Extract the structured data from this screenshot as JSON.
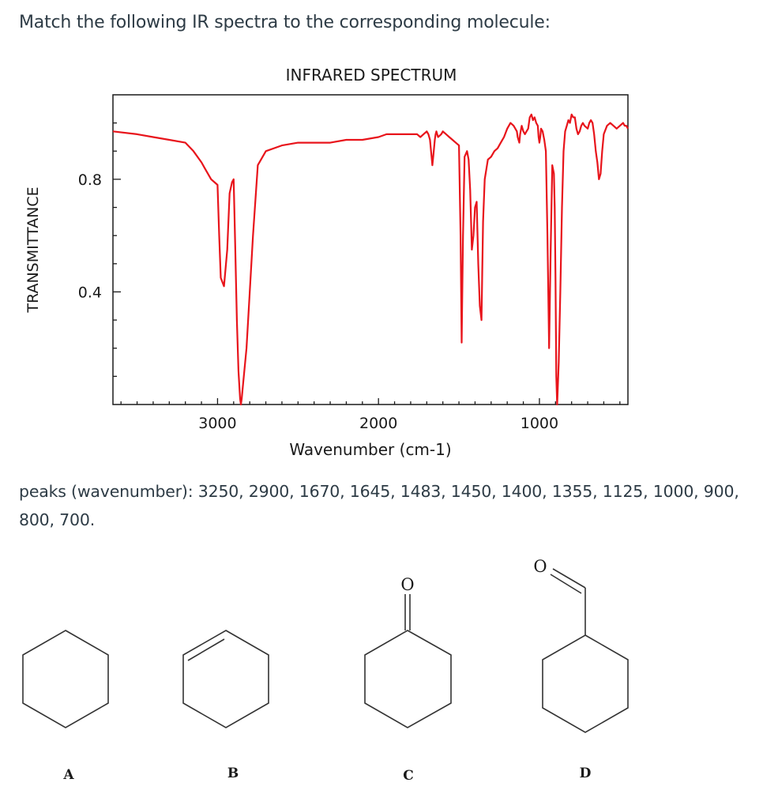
{
  "question": "Match the following IR spectra to the corresponding molecule:",
  "chart_data": {
    "type": "line",
    "title": "INFRARED SPECTRUM",
    "xlabel": "Wavenumber (cm-1)",
    "ylabel": "TRANSMITTANCE",
    "x_ticks": [
      {
        "value": 3000,
        "label": "3000"
      },
      {
        "value": 2000,
        "label": "2000"
      },
      {
        "value": 1000,
        "label": "1000"
      }
    ],
    "y_ticks": [
      {
        "value": 0.8,
        "label": "0.8"
      },
      {
        "value": 0.4,
        "label": "0.4"
      }
    ],
    "xlim": [
      3650,
      450
    ],
    "ylim": [
      0.0,
      1.1
    ],
    "line_color": "#e8141b",
    "series": [
      {
        "x": [
          3650,
          3500,
          3400,
          3300,
          3200,
          3150,
          3100,
          3080,
          3060,
          3040,
          3020,
          3000,
          2990,
          2980,
          2960,
          2940,
          2925,
          2910,
          2900,
          2890,
          2880,
          2870,
          2860,
          2855,
          2850,
          2840,
          2820,
          2800,
          2780,
          2750,
          2700,
          2600,
          2500,
          2400,
          2300,
          2200,
          2100,
          2000,
          1950,
          1920,
          1900,
          1880,
          1860,
          1840,
          1820,
          1800,
          1780,
          1760,
          1740,
          1720,
          1700,
          1690,
          1680,
          1670,
          1665,
          1660,
          1650,
          1645,
          1640,
          1630,
          1610,
          1600,
          1580,
          1560,
          1540,
          1520,
          1500,
          1490,
          1483,
          1475,
          1465,
          1450,
          1440,
          1430,
          1420,
          1410,
          1400,
          1390,
          1380,
          1370,
          1360,
          1355,
          1350,
          1340,
          1320,
          1300,
          1280,
          1260,
          1240,
          1220,
          1200,
          1180,
          1160,
          1140,
          1135,
          1130,
          1125,
          1120,
          1110,
          1100,
          1090,
          1080,
          1070,
          1060,
          1050,
          1040,
          1030,
          1020,
          1010,
          1005,
          1000,
          995,
          990,
          980,
          970,
          960,
          950,
          940,
          930,
          920,
          910,
          905,
          900,
          895,
          890,
          880,
          870,
          860,
          850,
          840,
          830,
          820,
          810,
          800,
          790,
          780,
          770,
          760,
          750,
          740,
          730,
          720,
          700,
          690,
          680,
          670,
          660,
          650,
          640,
          630,
          620,
          610,
          600,
          580,
          560,
          540,
          520,
          500,
          480,
          470,
          460,
          450
        ],
        "y": [
          0.97,
          0.96,
          0.95,
          0.94,
          0.93,
          0.9,
          0.86,
          0.84,
          0.82,
          0.8,
          0.79,
          0.78,
          0.6,
          0.45,
          0.42,
          0.55,
          0.75,
          0.79,
          0.8,
          0.55,
          0.3,
          0.12,
          0.02,
          0.0,
          0.02,
          0.08,
          0.2,
          0.4,
          0.6,
          0.85,
          0.9,
          0.92,
          0.93,
          0.93,
          0.93,
          0.94,
          0.94,
          0.95,
          0.96,
          0.96,
          0.96,
          0.96,
          0.96,
          0.96,
          0.96,
          0.96,
          0.96,
          0.96,
          0.95,
          0.96,
          0.97,
          0.96,
          0.94,
          0.88,
          0.85,
          0.88,
          0.94,
          0.96,
          0.97,
          0.95,
          0.96,
          0.97,
          0.96,
          0.95,
          0.94,
          0.93,
          0.92,
          0.6,
          0.22,
          0.6,
          0.88,
          0.9,
          0.87,
          0.76,
          0.55,
          0.6,
          0.7,
          0.72,
          0.5,
          0.35,
          0.3,
          0.48,
          0.65,
          0.8,
          0.87,
          0.88,
          0.9,
          0.91,
          0.93,
          0.95,
          0.98,
          1.0,
          0.99,
          0.97,
          0.95,
          0.94,
          0.93,
          0.96,
          0.99,
          0.97,
          0.96,
          0.97,
          0.98,
          1.02,
          1.03,
          1.01,
          1.02,
          1.0,
          0.99,
          0.95,
          0.93,
          0.95,
          0.98,
          0.97,
          0.94,
          0.9,
          0.6,
          0.2,
          0.55,
          0.85,
          0.82,
          0.7,
          0.45,
          0.1,
          0.0,
          0.15,
          0.4,
          0.7,
          0.9,
          0.97,
          0.99,
          1.01,
          1.0,
          1.03,
          1.02,
          1.02,
          0.98,
          0.96,
          0.97,
          0.99,
          1.0,
          0.99,
          0.98,
          1.0,
          1.01,
          1.0,
          0.96,
          0.9,
          0.86,
          0.8,
          0.82,
          0.9,
          0.96,
          0.99,
          1.0,
          0.99,
          0.98,
          0.99,
          1.0,
          0.99,
          0.99,
          0.98
        ]
      }
    ]
  },
  "peaks_text": "peaks (wavenumber): 3250, 2900, 1670, 1645, 1483, 1450, 1400, 1355, 1125, 1000, 900, 800, 700.",
  "molecules": [
    {
      "label": "A",
      "atom": ""
    },
    {
      "label": "B",
      "atom": ""
    },
    {
      "label": "C",
      "atom": "O"
    },
    {
      "label": "D",
      "atom": "O"
    }
  ]
}
